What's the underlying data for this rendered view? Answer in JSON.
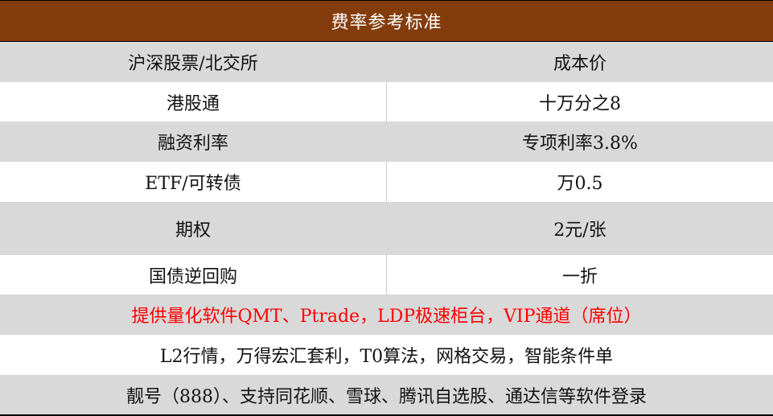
{
  "title": "费率参考标准",
  "rows": [
    {
      "label": "沪深股票/北交所",
      "value": "成本价"
    },
    {
      "label": "港股通",
      "value": "十万分之8"
    },
    {
      "label": "融资利率",
      "value": "专项利率3.8%"
    },
    {
      "label": "ETF/可转债",
      "value": "万0.5"
    },
    {
      "label": "期权",
      "value": "2元/张"
    },
    {
      "label": "国债逆回购",
      "value": "一折"
    }
  ],
  "notes": [
    "提供量化软件QMT、Ptrade，LDP极速柜台，VIP通道（席位）",
    "L2行情，万得宏汇套利，T0算法，网格交易，智能条件单",
    "靓号（888）、支持同花顺、雪球、腾讯自选股、通达信等软件登录"
  ],
  "colors": {
    "header_bg": "#843c0c",
    "highlight_text": "#ff0000",
    "row_gray": "#d9d9d9"
  }
}
